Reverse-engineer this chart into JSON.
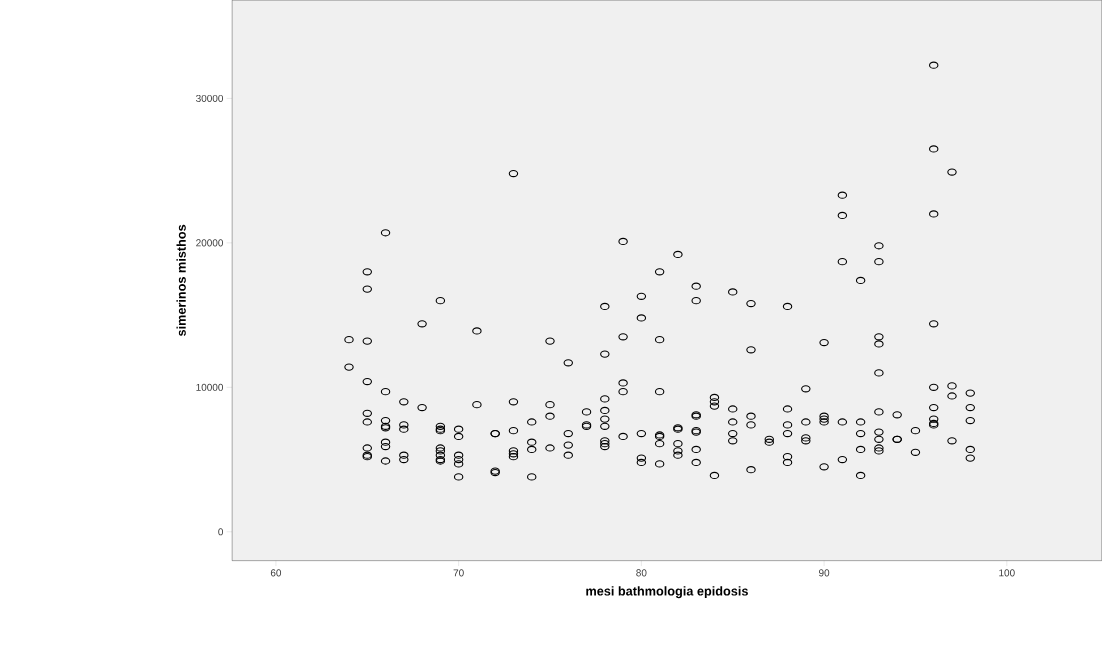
{
  "chart_data": {
    "type": "scatter",
    "xlabel": "mesi bathmologia epidosis",
    "ylabel": "simerinos misthos",
    "xlim": [
      57.6,
      105.2
    ],
    "ylim": [
      -2000,
      36800
    ],
    "xticks": [
      60,
      70,
      80,
      90,
      100
    ],
    "yticks": [
      0,
      10000,
      20000,
      30000
    ],
    "grid": false,
    "marker": "circle",
    "series": [
      {
        "color": "#000000",
        "x": [
          64,
          64,
          65,
          65,
          65,
          65,
          65,
          65,
          65,
          65,
          65,
          66,
          66,
          66,
          66,
          66,
          66,
          66,
          66,
          67,
          67,
          67,
          67,
          67,
          68,
          68,
          69,
          69,
          69,
          69,
          69,
          69,
          69,
          69,
          69,
          70,
          70,
          70,
          70,
          70,
          70,
          71,
          71,
          72,
          72,
          72,
          72,
          73,
          73,
          73,
          73,
          73,
          73,
          74,
          74,
          74,
          74,
          75,
          75,
          75,
          75,
          76,
          76,
          76,
          76,
          77,
          77,
          77,
          78,
          78,
          78,
          78,
          78,
          78,
          78,
          78,
          78,
          79,
          79,
          79,
          79,
          79,
          80,
          80,
          80,
          80,
          80,
          81,
          81,
          81,
          81,
          81,
          81,
          81,
          82,
          82,
          82,
          82,
          82,
          82,
          83,
          83,
          83,
          83,
          83,
          83,
          83,
          83,
          84,
          84,
          84,
          84,
          85,
          85,
          85,
          85,
          85,
          86,
          86,
          86,
          86,
          86,
          87,
          87,
          88,
          88,
          88,
          88,
          88,
          88,
          89,
          89,
          89,
          89,
          90,
          90,
          90,
          90,
          90,
          91,
          91,
          91,
          91,
          91,
          92,
          92,
          92,
          92,
          92,
          93,
          93,
          93,
          93,
          93,
          93,
          93,
          93,
          93,
          93,
          94,
          94,
          94,
          95,
          95,
          96,
          96,
          96,
          96,
          96,
          96,
          96,
          96,
          96,
          97,
          97,
          97,
          97,
          98,
          98,
          98,
          98,
          98
        ],
        "values": [
          13300,
          11400,
          18000,
          16800,
          13200,
          10400,
          8200,
          7600,
          5800,
          5200,
          5300,
          20700,
          9700,
          7700,
          7300,
          7200,
          6200,
          5900,
          4900,
          9000,
          7400,
          7100,
          5300,
          5000,
          14400,
          8600,
          16000,
          7300,
          7100,
          7000,
          5800,
          5600,
          5300,
          5000,
          4900,
          7100,
          6600,
          5300,
          5000,
          4700,
          3800,
          13900,
          8800,
          6800,
          6800,
          4200,
          4100,
          24800,
          9000,
          7000,
          5600,
          5400,
          5200,
          7600,
          6200,
          5700,
          3800,
          13200,
          8800,
          8000,
          5800,
          11700,
          6800,
          6000,
          5300,
          8300,
          7400,
          7300,
          15600,
          12300,
          9200,
          8400,
          7800,
          7300,
          6300,
          6100,
          5900,
          20100,
          13500,
          10300,
          9700,
          6600,
          16300,
          14800,
          6800,
          5100,
          4800,
          18000,
          13300,
          9700,
          6700,
          6600,
          6100,
          4700,
          19200,
          7200,
          7100,
          6100,
          5600,
          5300,
          17000,
          16000,
          8100,
          8000,
          7000,
          6900,
          5700,
          4800,
          9300,
          9000,
          8700,
          3900,
          16600,
          8500,
          7600,
          6800,
          6300,
          15800,
          12600,
          8000,
          7400,
          4300,
          6400,
          6200,
          15600,
          8500,
          7400,
          6800,
          5200,
          4800,
          9900,
          7600,
          6500,
          6300,
          13100,
          8000,
          7800,
          7600,
          4500,
          23300,
          21900,
          18700,
          7600,
          5000,
          17400,
          7600,
          6800,
          5700,
          3900,
          19800,
          18700,
          13500,
          13000,
          11000,
          8300,
          6900,
          6400,
          5800,
          5600,
          8100,
          6400,
          6400,
          7000,
          5500,
          32300,
          26500,
          22000,
          14400,
          10000,
          8600,
          7800,
          7500,
          7400,
          24900,
          10100,
          9400,
          6300,
          9600,
          8600,
          7700,
          5700,
          5100
        ]
      }
    ]
  }
}
